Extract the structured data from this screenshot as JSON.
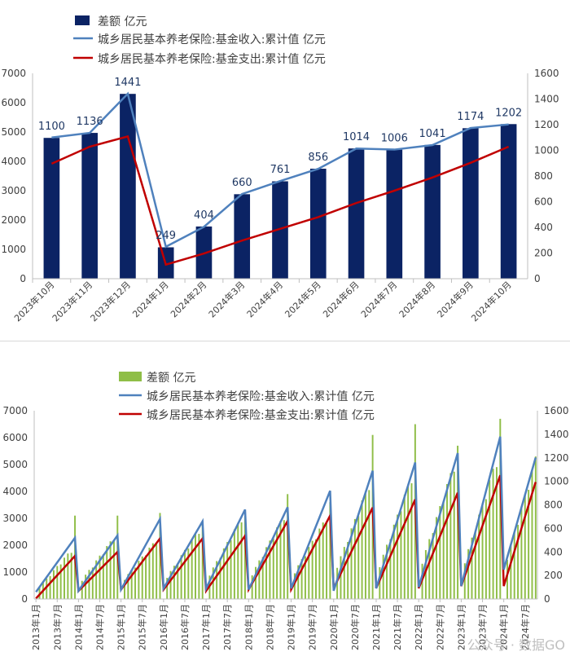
{
  "colors": {
    "bar_top": "#0b2364",
    "bar_bottom": "#8fbe47",
    "income": "#4f81bd",
    "expense": "#c00000",
    "axis": "#bfbfbf",
    "label": "#1f3864"
  },
  "watermark": "公众号 · 数据GO",
  "chart_data": [
    {
      "type": "bar+line",
      "legend": [
        {
          "name": "差额 亿元",
          "kind": "bar"
        },
        {
          "name": "城乡居民基本养老保险:基金收入:累计值 亿元",
          "kind": "line",
          "color_key": "income"
        },
        {
          "name": "城乡居民基本养老保险:基金支出:累计值 亿元",
          "kind": "line",
          "color_key": "expense"
        }
      ],
      "categories": [
        "2023年10月",
        "2023年11月",
        "2023年12月",
        "2024年1月",
        "2024年2月",
        "2024年3月",
        "2024年4月",
        "2024年5月",
        "2024年6月",
        "2024年7月",
        "2024年8月",
        "2024年9月",
        "2024年10月"
      ],
      "left_axis": {
        "min": 0,
        "max": 7000,
        "ticks": [
          0,
          1000,
          2000,
          3000,
          4000,
          5000,
          6000,
          7000
        ],
        "labels": [
          "0",
          "1000",
          "2000",
          "3000",
          "4000",
          "5000",
          "6000",
          "7000"
        ]
      },
      "right_axis": {
        "min": 0,
        "max": 1600,
        "ticks": [
          0,
          200,
          400,
          600,
          800,
          1000,
          1200,
          1400,
          1600
        ],
        "labels": [
          "0",
          "200",
          "400",
          "600",
          "800",
          "1000",
          "1200",
          "1400",
          "1600"
        ]
      },
      "bar_values": [
        4800,
        4970,
        6300,
        1070,
        1780,
        2880,
        3320,
        3750,
        4440,
        4400,
        4560,
        5130,
        5270
      ],
      "series": [
        {
          "name": "城乡居民基本养老保险:基金收入:累计值 亿元",
          "axis": "right",
          "values": [
            1100,
            1136,
            1441,
            249,
            404,
            660,
            761,
            856,
            1014,
            1006,
            1041,
            1174,
            1202
          ]
        },
        {
          "name": "城乡居民基本养老保险:基金支出:累计值 亿元",
          "axis": "left",
          "values": [
            3920,
            4500,
            4850,
            480,
            860,
            1300,
            1700,
            2100,
            2580,
            3000,
            3450,
            3950,
            4500
          ]
        }
      ],
      "data_labels": [
        "1100",
        "1136",
        "1441",
        "249",
        "404",
        "660",
        "761",
        "856",
        "1014",
        "1006",
        "1041",
        "1174",
        "1202"
      ]
    },
    {
      "type": "bar+line",
      "legend": [
        {
          "name": "差额 亿元",
          "kind": "bar"
        },
        {
          "name": "城乡居民基本养老保险:基金收入:累计值 亿元",
          "kind": "line",
          "color_key": "income"
        },
        {
          "name": "城乡居民基本养老保险:基金支出:累计值 亿元",
          "kind": "line",
          "color_key": "expense"
        }
      ],
      "start_year": 2013,
      "n_months": 142,
      "x_tick_labels": [
        "2013年1月",
        "2013年7月",
        "2014年1月",
        "2014年7月",
        "2015年1月",
        "2015年7月",
        "2016年1月",
        "2016年7月",
        "2017年1月",
        "2017年7月",
        "2018年1月",
        "2018年7月",
        "2019年1月",
        "2019年7月",
        "2020年1月",
        "2020年7月",
        "2021年1月",
        "2021年7月",
        "2022年1月",
        "2022年7月",
        "2023年1月",
        "2023年7月",
        "2024年1月",
        "2024年7月"
      ],
      "left_axis": {
        "min": 0,
        "max": 7000,
        "ticks": [
          0,
          1000,
          2000,
          3000,
          4000,
          5000,
          6000,
          7000
        ],
        "labels": [
          "0",
          "1000",
          "2000",
          "3000",
          "4000",
          "5000",
          "6000",
          "7000"
        ]
      },
      "right_axis": {
        "min": 0,
        "max": 1600,
        "ticks": [
          0,
          200,
          400,
          600,
          800,
          1000,
          1200,
          1400,
          1600
        ],
        "labels": [
          "0",
          "200",
          "400",
          "600",
          "800",
          "1000",
          "1200",
          "1400",
          "1600"
        ]
      },
      "yearly": [
        {
          "year": 2013,
          "income_start": 60,
          "income_end": 520,
          "expense_start": 20,
          "expense_end": 1600,
          "bar_start": 300,
          "bar_end": 2000,
          "bar_dec": 3100
        },
        {
          "year": 2014,
          "income_start": 70,
          "income_end": 540,
          "expense_start": 300,
          "expense_end": 1750,
          "bar_start": 550,
          "bar_end": 2500,
          "bar_dec": 3100
        },
        {
          "year": 2015,
          "income_start": 80,
          "income_end": 680,
          "expense_start": 350,
          "expense_end": 2250,
          "bar_start": 600,
          "bar_end": 2400,
          "bar_dec": 3200
        },
        {
          "year": 2016,
          "income_start": 90,
          "income_end": 660,
          "expense_start": 350,
          "expense_end": 2250,
          "bar_start": 650,
          "bar_end": 2800,
          "bar_dec": 2800
        },
        {
          "year": 2017,
          "income_start": 90,
          "income_end": 760,
          "expense_start": 300,
          "expense_end": 2350,
          "bar_start": 700,
          "bar_end": 3300,
          "bar_dec": 3300
        },
        {
          "year": 2018,
          "income_start": 80,
          "income_end": 780,
          "expense_start": 350,
          "expense_end": 2900,
          "bar_start": 700,
          "bar_end": 3400,
          "bar_dec": 3900
        },
        {
          "year": 2019,
          "income_start": 90,
          "income_end": 920,
          "expense_start": 350,
          "expense_end": 3100,
          "bar_start": 800,
          "bar_end": 3300,
          "bar_dec": 3600
        },
        {
          "year": 2020,
          "income_start": 70,
          "income_end": 1090,
          "expense_start": 400,
          "expense_end": 3400,
          "bar_start": 900,
          "bar_end": 4700,
          "bar_dec": 6100
        },
        {
          "year": 2021,
          "income_start": 90,
          "income_end": 1160,
          "expense_start": 400,
          "expense_end": 3700,
          "bar_start": 900,
          "bar_end": 5000,
          "bar_dec": 6500
        },
        {
          "year": 2022,
          "income_start": 100,
          "income_end": 1240,
          "expense_start": 400,
          "expense_end": 3950,
          "bar_start": 1000,
          "bar_end": 5500,
          "bar_dec": 5700
        },
        {
          "year": 2023,
          "income_start": 110,
          "income_end": 1380,
          "expense_start": 480,
          "expense_end": 4600,
          "bar_start": 1000,
          "bar_end": 5700,
          "bar_dec": 6700
        },
        {
          "year": 2024,
          "income_start": 250,
          "income_end": 1202,
          "expense_start": 480,
          "expense_end": 4350,
          "bar_start": 1100,
          "bar_end": 5300,
          "bar_dec": null
        }
      ]
    }
  ]
}
